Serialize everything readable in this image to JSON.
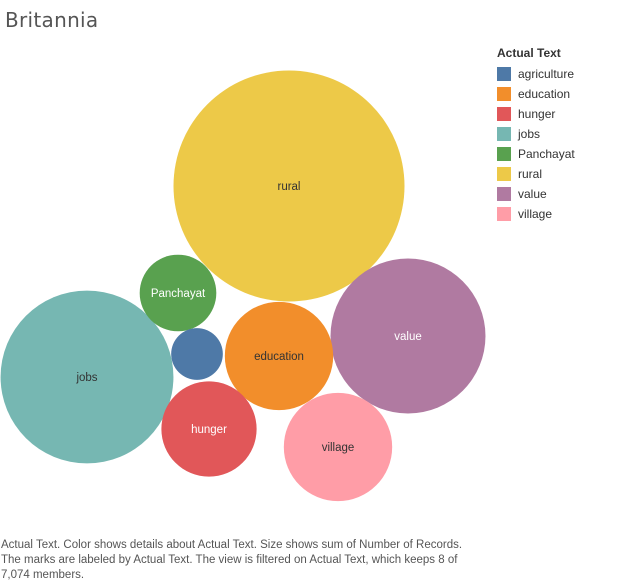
{
  "title": "Britannia",
  "legend": {
    "title": "Actual Text",
    "items": [
      {
        "label": "agriculture",
        "color": "#4e79a7"
      },
      {
        "label": "education",
        "color": "#f28e2b"
      },
      {
        "label": "hunger",
        "color": "#e15759"
      },
      {
        "label": "jobs",
        "color": "#76b7b2"
      },
      {
        "label": "Panchayat",
        "color": "#59a14f"
      },
      {
        "label": "rural",
        "color": "#edc948"
      },
      {
        "label": "value",
        "color": "#b07aa1"
      },
      {
        "label": "village",
        "color": "#ff9da7"
      }
    ]
  },
  "caption": "Actual Text.  Color shows details about Actual Text.  Size shows sum of Number of Records.  The marks are labeled by Actual Text. The view is filtered on Actual Text, which keeps 8 of 7,074 members.",
  "chart_data": {
    "type": "bubble",
    "measure": "Number of Records",
    "dimension": "Actual Text",
    "bubbles": [
      {
        "label": "rural",
        "value": 100,
        "color": "#edc948",
        "text_color": "#333333"
      },
      {
        "label": "jobs",
        "value": 56,
        "color": "#76b7b2",
        "text_color": "#333333"
      },
      {
        "label": "value",
        "value": 45,
        "color": "#b07aa1",
        "text_color": "#ffffff"
      },
      {
        "label": "village",
        "value": 22,
        "color": "#ff9da7",
        "text_color": "#333333"
      },
      {
        "label": "education",
        "value": 22,
        "color": "#f28e2b",
        "text_color": "#333333"
      },
      {
        "label": "hunger",
        "value": 17,
        "color": "#e15759",
        "text_color": "#ffffff"
      },
      {
        "label": "Panchayat",
        "value": 11,
        "color": "#59a14f",
        "text_color": "#ffffff"
      },
      {
        "label": "agriculture",
        "value": 5,
        "color": "#4e79a7",
        "text_color": "#ffffff",
        "show_label": false
      }
    ]
  }
}
